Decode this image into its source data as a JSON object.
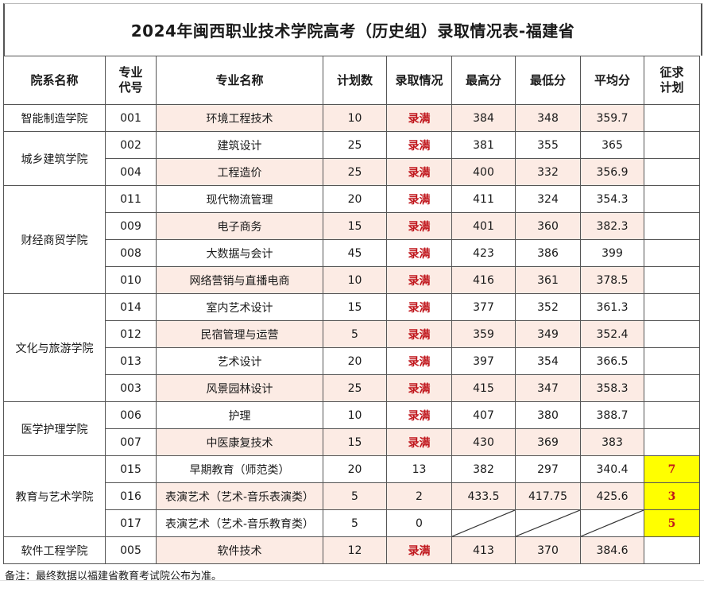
{
  "title": "2024年闽西职业技术学院高考（历史组）录取情况表-福建省",
  "headers": {
    "college": "院系名称",
    "code_1": "专业",
    "code_2": "代号",
    "major": "专业名称",
    "plan": "计划数",
    "status": "录取情况",
    "max": "最高分",
    "min": "最低分",
    "avg": "平均分",
    "supp_1": "征求",
    "supp_2": "计划"
  },
  "colleges": [
    {
      "name": "智能制造学院"
    },
    {
      "name": "城乡建筑学院"
    },
    {
      "name": "财经商贸学院"
    },
    {
      "name": "文化与旅游学院"
    },
    {
      "name": "医学护理学院"
    },
    {
      "name": "教育与艺术学院"
    },
    {
      "name": "软件工程学院"
    }
  ],
  "rows": [
    {
      "code": "001",
      "major": "环境工程技术",
      "plan": "10",
      "status": "录满",
      "max": "384",
      "min": "348",
      "avg": "359.7",
      "supp": ""
    },
    {
      "code": "002",
      "major": "建筑设计",
      "plan": "25",
      "status": "录满",
      "max": "381",
      "min": "355",
      "avg": "365",
      "supp": ""
    },
    {
      "code": "004",
      "major": "工程造价",
      "plan": "25",
      "status": "录满",
      "max": "400",
      "min": "332",
      "avg": "356.9",
      "supp": ""
    },
    {
      "code": "011",
      "major": "现代物流管理",
      "plan": "20",
      "status": "录满",
      "max": "411",
      "min": "324",
      "avg": "354.3",
      "supp": ""
    },
    {
      "code": "009",
      "major": "电子商务",
      "plan": "15",
      "status": "录满",
      "max": "401",
      "min": "360",
      "avg": "382.3",
      "supp": ""
    },
    {
      "code": "008",
      "major": "大数据与会计",
      "plan": "45",
      "status": "录满",
      "max": "423",
      "min": "386",
      "avg": "399",
      "supp": ""
    },
    {
      "code": "010",
      "major": "网络营销与直播电商",
      "plan": "10",
      "status": "录满",
      "max": "416",
      "min": "361",
      "avg": "378.5",
      "supp": ""
    },
    {
      "code": "014",
      "major": "室内艺术设计",
      "plan": "15",
      "status": "录满",
      "max": "377",
      "min": "352",
      "avg": "361.3",
      "supp": ""
    },
    {
      "code": "012",
      "major": "民宿管理与运营",
      "plan": "5",
      "status": "录满",
      "max": "359",
      "min": "349",
      "avg": "352.4",
      "supp": ""
    },
    {
      "code": "013",
      "major": "艺术设计",
      "plan": "20",
      "status": "录满",
      "max": "397",
      "min": "354",
      "avg": "366.5",
      "supp": ""
    },
    {
      "code": "003",
      "major": "风景园林设计",
      "plan": "25",
      "status": "录满",
      "max": "415",
      "min": "347",
      "avg": "358.3",
      "supp": ""
    },
    {
      "code": "006",
      "major": "护理",
      "plan": "10",
      "status": "录满",
      "max": "407",
      "min": "380",
      "avg": "388.7",
      "supp": ""
    },
    {
      "code": "007",
      "major": "中医康复技术",
      "plan": "15",
      "status": "录满",
      "max": "430",
      "min": "369",
      "avg": "383",
      "supp": ""
    },
    {
      "code": "015",
      "major": "早期教育（师范类）",
      "plan": "20",
      "status": "13",
      "max": "382",
      "min": "297",
      "avg": "340.4",
      "supp": "7"
    },
    {
      "code": "016",
      "major": "表演艺术（艺术-音乐表演类）",
      "plan": "5",
      "status": "2",
      "max": "433.5",
      "min": "417.75",
      "avg": "425.6",
      "supp": "3"
    },
    {
      "code": "017",
      "major": "表演艺术（艺术-音乐教育类）",
      "plan": "5",
      "status": "0",
      "max": "",
      "min": "",
      "avg": "",
      "supp": "5"
    },
    {
      "code": "005",
      "major": "软件技术",
      "plan": "12",
      "status": "录满",
      "max": "413",
      "min": "370",
      "avg": "384.6",
      "supp": ""
    }
  ],
  "note": "备注：最终数据以福建省教育考试院公布为准。",
  "colors": {
    "full_text": "#c0161c",
    "highlight": "#ffff00",
    "pink_fill": "#fcebe4"
  }
}
